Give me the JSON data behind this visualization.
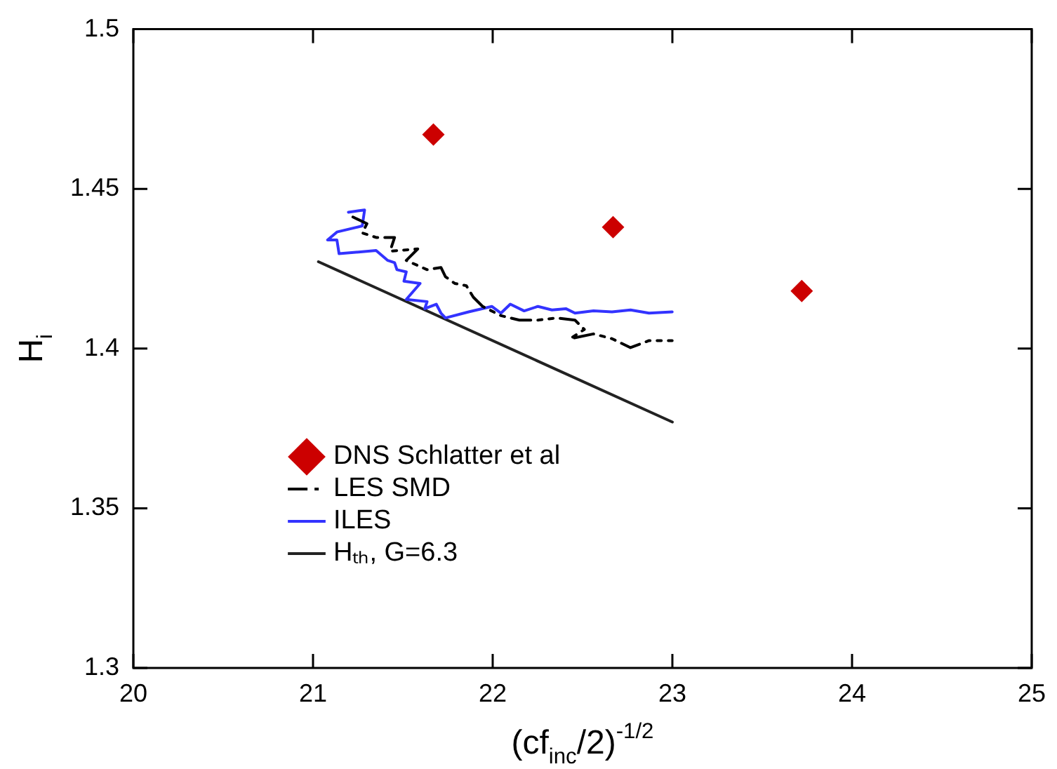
{
  "chart_data": {
    "type": "line",
    "xlabel": "(cf$_{inc}$/2)$^{-1/2}$",
    "ylabel": "H$_{i}$",
    "xlim": [
      20,
      25
    ],
    "xticks": [
      20,
      21,
      22,
      23,
      24,
      25
    ],
    "ylim": [
      1.3,
      1.5
    ],
    "yticks": [
      1.3,
      1.35,
      1.4,
      1.45,
      1.5
    ],
    "grid": false,
    "legend": "bottom left",
    "series": [
      {
        "name": "DNS Schlatter et al",
        "type": "scatter",
        "marker": "diamond",
        "color": "#cc0000",
        "x": [
          21.67,
          22.67,
          23.72
        ],
        "values": [
          1.467,
          1.438,
          1.418
        ]
      },
      {
        "name": "LES SMD",
        "line_style": "dashed",
        "marker": "none",
        "color": "#000000",
        "x": [
          21.222,
          21.3,
          21.274,
          21.351,
          21.454,
          21.429,
          21.583,
          21.519,
          21.635,
          21.712,
          21.737,
          21.789,
          21.853,
          21.892,
          21.944,
          22.046,
          22.149,
          22.252,
          22.355,
          22.458,
          22.51,
          22.432,
          22.561,
          22.664,
          22.767,
          22.87,
          22.999
        ],
        "values": [
          1.4412,
          1.4391,
          1.4362,
          1.4348,
          1.4348,
          1.4305,
          1.4312,
          1.4276,
          1.4247,
          1.4254,
          1.4225,
          1.4204,
          1.4197,
          1.4161,
          1.4132,
          1.4103,
          1.4089,
          1.4089,
          1.4096,
          1.4089,
          1.406,
          1.4031,
          1.4046,
          1.4031,
          1.4003,
          1.4025,
          1.4025
        ]
      },
      {
        "name": "ILES",
        "line_style": "solid",
        "marker": "none",
        "color": "#3333ff",
        "x": [
          21.197,
          21.287,
          21.274,
          21.133,
          21.081,
          21.133,
          21.145,
          21.351,
          21.416,
          21.454,
          21.467,
          21.519,
          21.506,
          21.596,
          21.519,
          21.635,
          21.622,
          21.686,
          21.712,
          21.737,
          21.866,
          21.995,
          22.046,
          22.098,
          22.175,
          22.252,
          22.33,
          22.407,
          22.458,
          22.561,
          22.664,
          22.767,
          22.87,
          22.999
        ],
        "values": [
          1.4427,
          1.4434,
          1.4384,
          1.4365,
          1.434,
          1.434,
          1.4297,
          1.4307,
          1.4276,
          1.4269,
          1.4247,
          1.424,
          1.4211,
          1.4204,
          1.4154,
          1.4147,
          1.4125,
          1.4139,
          1.4111,
          1.4096,
          1.4115,
          1.4132,
          1.4111,
          1.4139,
          1.4118,
          1.4132,
          1.4121,
          1.4125,
          1.4111,
          1.4118,
          1.4115,
          1.4121,
          1.4111,
          1.4115
        ]
      },
      {
        "name": "Hₜₕ, G=6.3",
        "line_style": "solid",
        "marker": "none",
        "color": "#222222",
        "x": [
          21.03,
          23.0
        ],
        "values": [
          1.4272,
          1.377
        ]
      }
    ]
  }
}
